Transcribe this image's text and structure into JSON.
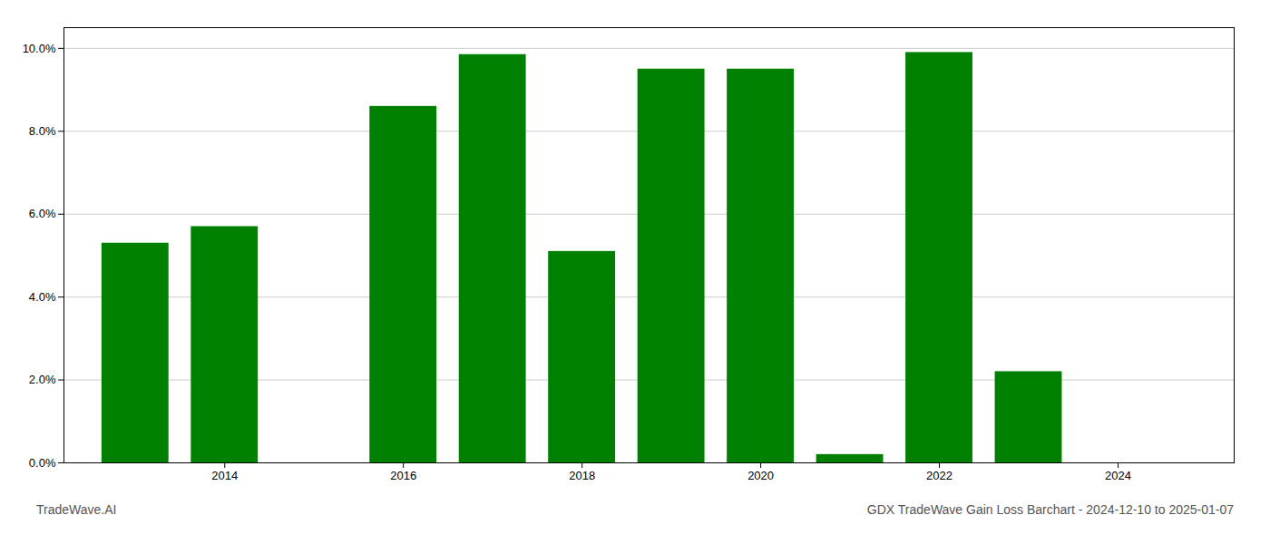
{
  "chart_data": {
    "type": "bar",
    "title": "GDX TradeWave Gain Loss Barchart - 2024-12-10 to 2025-01-07",
    "annotations": [
      "TradeWave.AI"
    ],
    "x": [
      2013,
      2014,
      2015,
      2016,
      2017,
      2018,
      2019,
      2020,
      2021,
      2022,
      2023,
      2024
    ],
    "values": [
      0.053,
      0.057,
      0.0,
      0.086,
      0.0985,
      0.051,
      0.095,
      0.095,
      0.002,
      0.099,
      0.022,
      0.0
    ],
    "color": "#008000",
    "xlim": [
      2012.2,
      2025.3
    ],
    "xticks": [
      2014,
      2016,
      2018,
      2020,
      2022,
      2024
    ],
    "ylim": [
      0,
      0.105
    ],
    "yticks": [
      {
        "value": 0.0,
        "label": "0.0%"
      },
      {
        "value": 0.02,
        "label": "2.0%"
      },
      {
        "value": 0.04,
        "label": "4.0%"
      },
      {
        "value": 0.06,
        "label": "6.0%"
      },
      {
        "value": 0.08,
        "label": "8.0%"
      },
      {
        "value": 0.1,
        "label": "10.0%"
      }
    ],
    "grid": true
  }
}
